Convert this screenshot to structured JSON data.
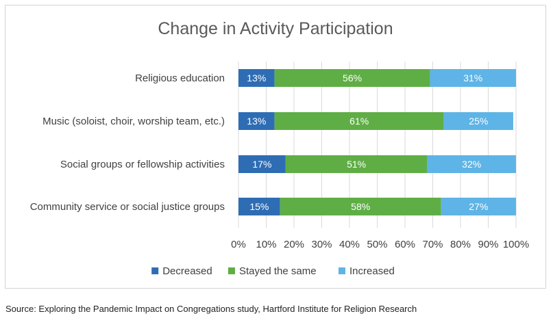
{
  "chart_data": {
    "type": "bar",
    "orientation": "horizontal",
    "stacked": true,
    "title": "Change in Activity Participation",
    "categories": [
      "Religious education",
      "Music (soloist, choir, worship team, etc.)",
      "Social groups or fellowship activities",
      "Community service or social justice groups"
    ],
    "series": [
      {
        "name": "Decreased",
        "color": "#2e6db4",
        "values": [
          13,
          13,
          17,
          15
        ],
        "labels": [
          "13%",
          "13%",
          "17%",
          "15%"
        ]
      },
      {
        "name": "Stayed the same",
        "color": "#5fae45",
        "values": [
          56,
          61,
          51,
          58
        ],
        "labels": [
          "56%",
          "61%",
          "51%",
          "58%"
        ]
      },
      {
        "name": "Increased",
        "color": "#5eb4e6",
        "values": [
          31,
          25,
          32,
          27
        ],
        "labels": [
          "31%",
          "25%",
          "32%",
          "27%"
        ]
      }
    ],
    "xlim": [
      0,
      100
    ],
    "x_ticks": [
      "0%",
      "10%",
      "20%",
      "30%",
      "40%",
      "50%",
      "60%",
      "70%",
      "80%",
      "90%",
      "100%"
    ],
    "grid": true,
    "legend_position": "bottom"
  },
  "source": "Source: Exploring the Pandemic Impact on Congregations study, Hartford Institute for Religion Research"
}
